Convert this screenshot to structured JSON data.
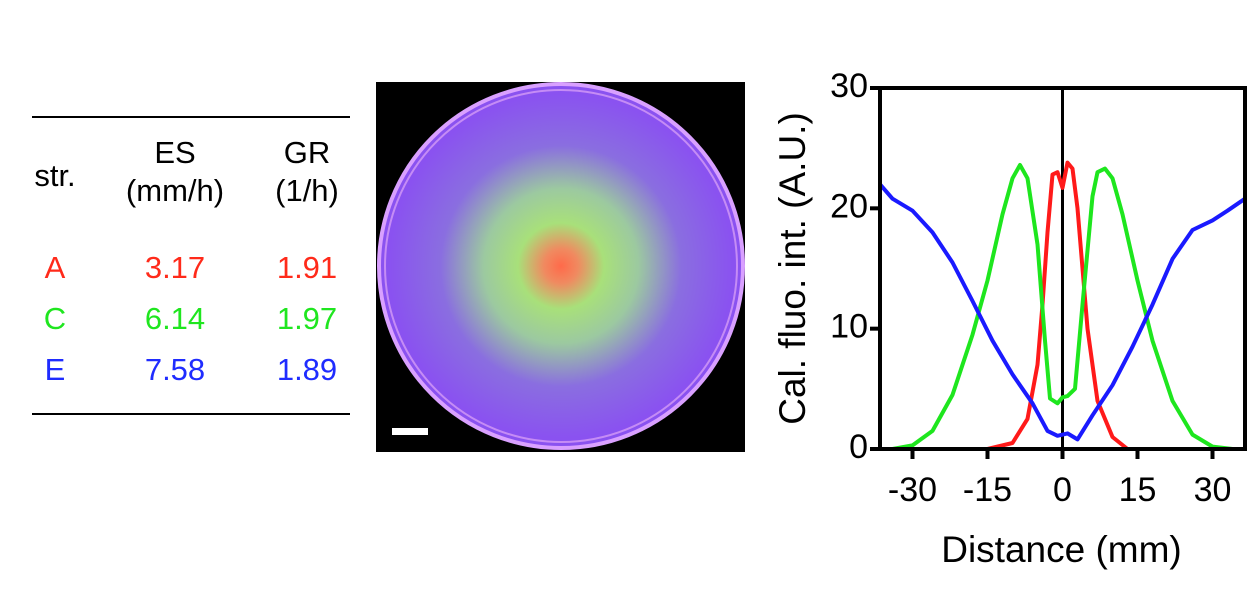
{
  "table": {
    "header": [
      [
        "str."
      ],
      [
        "ES",
        "(mm/h)"
      ],
      [
        "GR",
        "(1/h)"
      ]
    ],
    "rows": [
      [
        "A",
        "3.17",
        "1.91"
      ],
      [
        "C",
        "6.14",
        "1.97"
      ],
      [
        "E",
        "7.58",
        "1.89"
      ]
    ],
    "row_colors": [
      "#ff2a1a",
      "#1fe61f",
      "#1f2cff"
    ]
  },
  "chart_data": {
    "type": "line",
    "x_label": "Distance (mm)",
    "y_label": "Cal. fluo. int. (A.U.)",
    "xlim": [
      -36.5,
      36.5
    ],
    "ylim": [
      0,
      30
    ],
    "xticks": [
      -30,
      -15,
      0,
      15,
      30
    ],
    "yticks": [
      0,
      10,
      20,
      30
    ],
    "series": [
      {
        "color": "#ff1a1a",
        "x": [
          -15,
          -10,
          -7,
          -5,
          -4,
          -3,
          -2,
          -1,
          0,
          1,
          2,
          3,
          4,
          5,
          7,
          10,
          13
        ],
        "values": [
          0,
          0.5,
          2.5,
          7,
          12,
          18,
          22.8,
          23,
          21.7,
          23.8,
          23.3,
          20,
          15,
          10,
          4,
          1,
          0
        ]
      },
      {
        "color": "#1ee61e",
        "x": [
          -34,
          -30,
          -26,
          -22,
          -18,
          -15,
          -12,
          -10,
          -8.5,
          -7,
          -5,
          -3.5,
          -2.5,
          -1,
          0,
          1,
          2.5,
          4,
          6,
          7,
          8.5,
          10,
          12,
          15,
          18,
          22,
          26,
          30,
          34
        ],
        "values": [
          0,
          0.3,
          1.5,
          4.5,
          9.5,
          14,
          19.5,
          22.5,
          23.6,
          22.5,
          17,
          9,
          4.2,
          3.8,
          4.3,
          4.4,
          5,
          12,
          21,
          23,
          23.3,
          22.5,
          19.5,
          14,
          9,
          4,
          1.2,
          0.2,
          0
        ]
      },
      {
        "color": "#1a1aff",
        "x": [
          -36.5,
          -34,
          -30,
          -26,
          -22,
          -18,
          -14,
          -10,
          -6,
          -3,
          -1,
          1,
          3,
          6,
          10,
          14,
          18,
          22,
          26,
          30,
          33,
          36.5
        ],
        "values": [
          22,
          20.8,
          19.8,
          18,
          15.5,
          12.3,
          9,
          6.2,
          3.8,
          1.5,
          1.1,
          1.3,
          0.8,
          2.8,
          5.3,
          8.5,
          12,
          15.8,
          18.2,
          19,
          19.8,
          20.8
        ]
      }
    ]
  }
}
